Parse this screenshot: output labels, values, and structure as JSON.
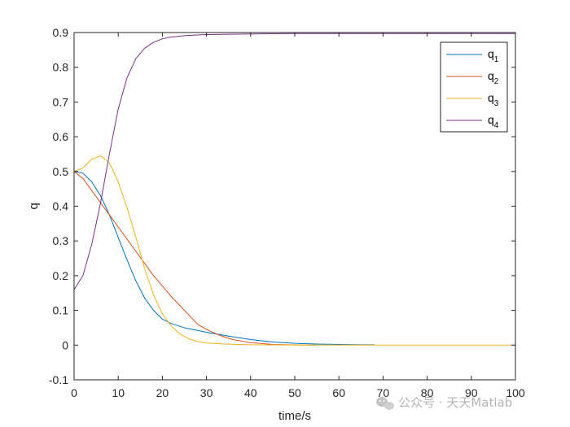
{
  "chart_data": {
    "type": "line",
    "xlabel": "time/s",
    "ylabel": "q",
    "xlim": [
      0,
      100
    ],
    "ylim": [
      -0.1,
      0.9
    ],
    "xticks": [
      0,
      10,
      20,
      30,
      40,
      50,
      60,
      70,
      80,
      90,
      100
    ],
    "yticks": [
      -0.1,
      0,
      0.1,
      0.2,
      0.3,
      0.4,
      0.5,
      0.6,
      0.7,
      0.8,
      0.9
    ],
    "xtick_labels": [
      "0",
      "10",
      "20",
      "30",
      "40",
      "50",
      "60",
      "70",
      "80",
      "90",
      "100"
    ],
    "ytick_labels": [
      "-0.1",
      "0",
      "0.1",
      "0.2",
      "0.3",
      "0.4",
      "0.5",
      "0.6",
      "0.7",
      "0.8",
      "0.9"
    ],
    "grid": false,
    "legend_position": "top-right",
    "series": [
      {
        "name": "q",
        "subscript": "1",
        "color": "#0072BD",
        "x": [
          0,
          2,
          4,
          6,
          8,
          10,
          12,
          14,
          16,
          18,
          20,
          22,
          25,
          30,
          35,
          40,
          45,
          50,
          55,
          60,
          65,
          68
        ],
        "y": [
          0.5,
          0.495,
          0.47,
          0.43,
          0.375,
          0.31,
          0.245,
          0.185,
          0.135,
          0.1,
          0.075,
          0.062,
          0.05,
          0.037,
          0.026,
          0.016,
          0.009,
          0.005,
          0.003,
          0.002,
          0.001,
          0.001
        ]
      },
      {
        "name": "q",
        "subscript": "2",
        "color": "#D95319",
        "x": [
          0,
          2,
          4,
          6,
          8,
          10,
          12,
          14,
          16,
          18,
          20,
          22,
          25,
          28,
          30,
          33,
          36,
          40,
          45,
          50,
          55
        ],
        "y": [
          0.5,
          0.48,
          0.445,
          0.41,
          0.375,
          0.34,
          0.305,
          0.27,
          0.235,
          0.2,
          0.17,
          0.14,
          0.1,
          0.06,
          0.045,
          0.028,
          0.016,
          0.007,
          0.002,
          0.0005,
          0
        ]
      },
      {
        "name": "q",
        "subscript": "3",
        "color": "#EDB120",
        "x": [
          0,
          2,
          4,
          6,
          8,
          10,
          12,
          14,
          16,
          18,
          20,
          22,
          24,
          26,
          28,
          30,
          34,
          40,
          50,
          60,
          70,
          80,
          90,
          100
        ],
        "y": [
          0.5,
          0.51,
          0.535,
          0.545,
          0.525,
          0.47,
          0.395,
          0.31,
          0.22,
          0.145,
          0.09,
          0.055,
          0.032,
          0.018,
          0.01,
          0.006,
          0.003,
          0.001,
          0,
          0,
          0,
          0,
          0,
          0
        ]
      },
      {
        "name": "q",
        "subscript": "4",
        "color": "#7E2F8E",
        "x": [
          0,
          2,
          4,
          6,
          8,
          10,
          12,
          14,
          16,
          18,
          20,
          22,
          25,
          28,
          30,
          35,
          40,
          50,
          60,
          70,
          80,
          90,
          100
        ],
        "y": [
          0.16,
          0.2,
          0.29,
          0.41,
          0.55,
          0.68,
          0.77,
          0.825,
          0.855,
          0.872,
          0.882,
          0.887,
          0.891,
          0.893,
          0.894,
          0.895,
          0.896,
          0.897,
          0.897,
          0.897,
          0.897,
          0.897,
          0.897
        ]
      }
    ]
  },
  "watermark": "公众号 · 天天Matlab"
}
